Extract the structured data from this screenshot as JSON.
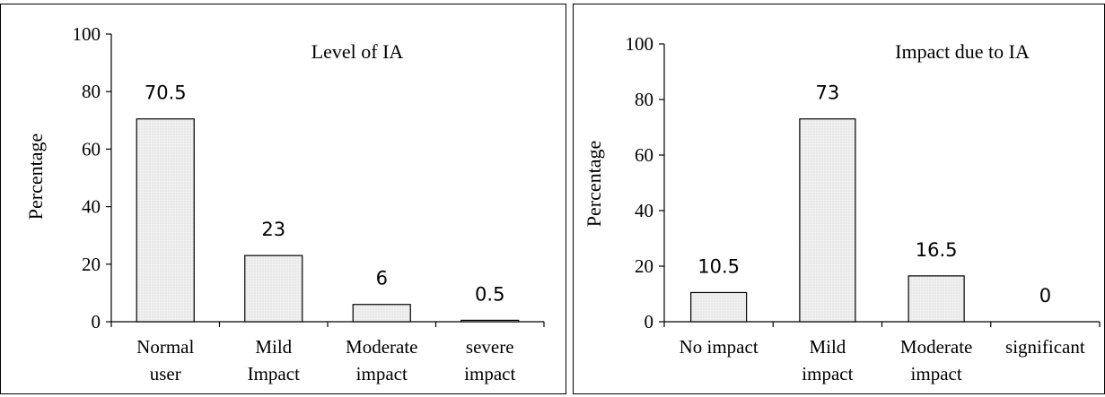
{
  "chart_data": [
    {
      "type": "bar",
      "title": "Level of IA",
      "ylabel": "Percentage",
      "xlabel": "",
      "ylim": [
        0,
        100
      ],
      "yticks": [
        "0",
        "20",
        "40",
        "60",
        "80",
        "100"
      ],
      "categories": [
        [
          "Normal",
          "user"
        ],
        [
          "Mild",
          "Impact"
        ],
        [
          "Moderate",
          "impact"
        ],
        [
          "severe",
          "impact"
        ]
      ],
      "values": [
        70.5,
        23,
        6,
        0.5
      ],
      "data_labels": [
        "70.5",
        "23",
        "6",
        "0.5"
      ],
      "bar_fill": "dotted light gray",
      "grid": false,
      "legend": "none"
    },
    {
      "type": "bar",
      "title": "Impact due to IA",
      "ylabel": "Percentage",
      "xlabel": "",
      "ylim": [
        0,
        100
      ],
      "yticks": [
        "0",
        "20",
        "40",
        "60",
        "80",
        "100"
      ],
      "categories": [
        [
          "No impact"
        ],
        [
          "Mild",
          "impact"
        ],
        [
          "Moderate",
          "impact"
        ],
        [
          "significant"
        ]
      ],
      "values": [
        10.5,
        73,
        16.5,
        0
      ],
      "data_labels": [
        "10.5",
        "73",
        "16.5",
        "0"
      ],
      "bar_fill": "dotted light gray",
      "grid": false,
      "legend": "none"
    }
  ],
  "colors": {
    "bar_fill": "#f1f1f1",
    "bar_dot": "#c8c8c8",
    "axis": "#000000",
    "text": "#000000"
  }
}
